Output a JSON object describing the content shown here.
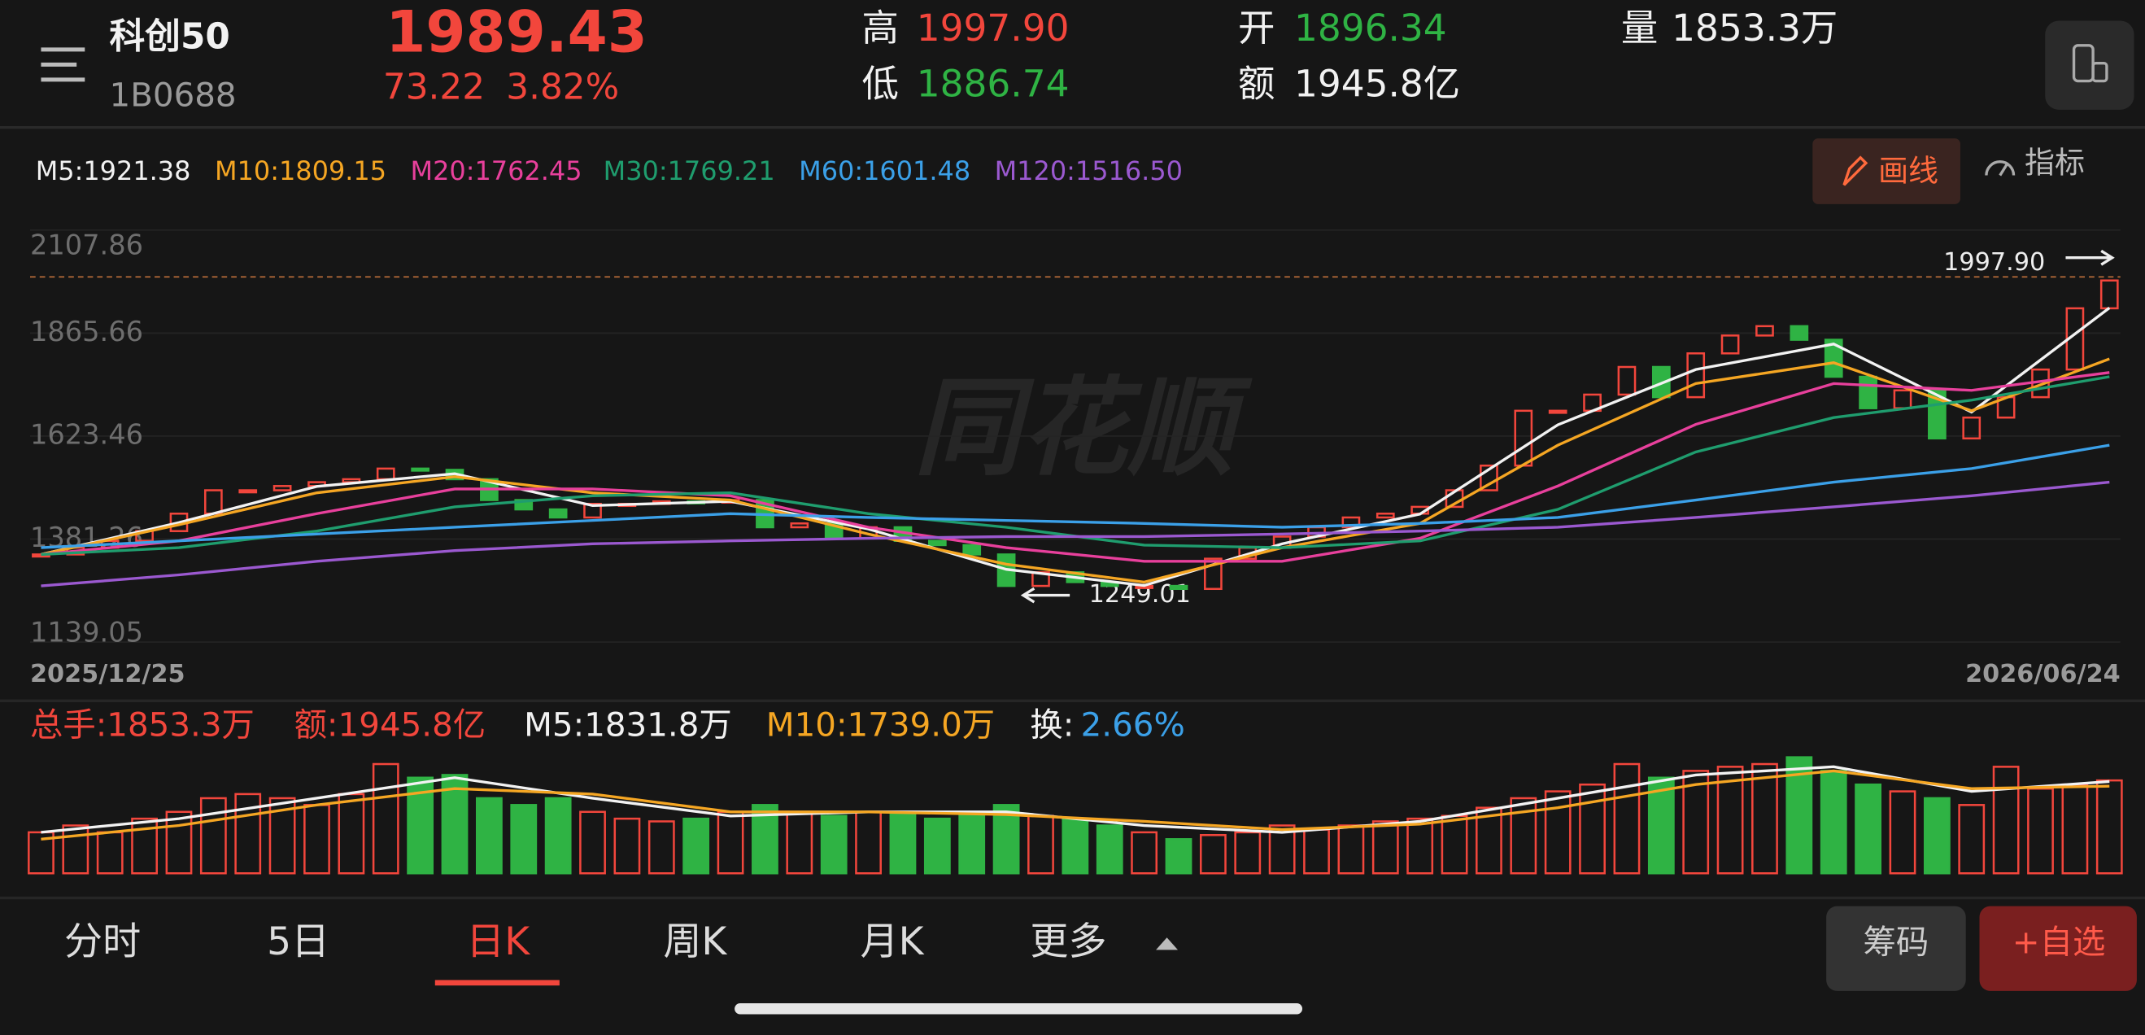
{
  "header": {
    "title": "科创50",
    "code": "1B0688",
    "price": "1989.43",
    "change": "73.22",
    "change_pct": "3.82%",
    "stats": [
      {
        "label": "高",
        "value": "1997.90"
      },
      {
        "label": "低",
        "value": "1886.74"
      },
      {
        "label": "开",
        "value": "1896.34"
      },
      {
        "label": "额",
        "value": "1945.8亿"
      },
      {
        "label": "量",
        "value": "1853.3万"
      }
    ]
  },
  "toolbar": {
    "draw_button": "画线",
    "indicator_button": "指标"
  },
  "watermark": "同花顺",
  "chart_data": [
    {
      "type": "candlestick",
      "closes": [
        1345,
        1361,
        1377,
        1400,
        1441,
        1496,
        1496,
        1506,
        1515,
        1522,
        1547,
        1544,
        1522,
        1473,
        1451,
        1432,
        1464,
        1464,
        1470,
        1467,
        1473,
        1409,
        1418,
        1383,
        1409,
        1377,
        1367,
        1345,
        1271,
        1303,
        1280,
        1271,
        1271,
        1264,
        1335,
        1361,
        1387,
        1409,
        1432,
        1441,
        1457,
        1496,
        1554,
        1683,
        1683,
        1721,
        1786,
        1715,
        1818,
        1860,
        1882,
        1850,
        1763,
        1689,
        1731,
        1618,
        1667,
        1715,
        1780,
        1924,
        1989.43
      ],
      "up_color": "#f2463c",
      "down_color": "#2fb344",
      "ylim": [
        1139.05,
        2107.86
      ],
      "yticks": [
        2107.86,
        1865.66,
        1623.46,
        1381.26,
        1139.05
      ],
      "x_start_label": "2025/12/25",
      "x_end_label": "2026/06/24",
      "high_mark": {
        "value": 1997.9,
        "label": "1997.90"
      },
      "low_mark": 1249.01,
      "series": [
        {
          "name": "M5:1921.38",
          "color": "#f2f2f2",
          "x": [
            0,
            4,
            8,
            12,
            16,
            20,
            24,
            28,
            32,
            36,
            40,
            44,
            48,
            52,
            56,
            60
          ],
          "values": [
            1345,
            1420,
            1505,
            1535,
            1460,
            1470,
            1405,
            1310,
            1272,
            1370,
            1440,
            1650,
            1780,
            1840,
            1680,
            1925
          ]
        },
        {
          "name": "M10:1809.15",
          "color": "#f5a623",
          "x": [
            0,
            4,
            8,
            12,
            16,
            20,
            24,
            28,
            32,
            36,
            40,
            44,
            48,
            52,
            56,
            60
          ],
          "values": [
            1345,
            1415,
            1490,
            1528,
            1490,
            1473,
            1393,
            1322,
            1280,
            1361,
            1418,
            1602,
            1747,
            1796,
            1683,
            1805
          ]
        },
        {
          "name": "M20:1762.45",
          "color": "#e8409c",
          "x": [
            0,
            4,
            8,
            12,
            16,
            20,
            24,
            28,
            32,
            36,
            40,
            44,
            48,
            52,
            56,
            60
          ],
          "values": [
            1345,
            1377,
            1441,
            1499,
            1499,
            1483,
            1409,
            1361,
            1329,
            1329,
            1383,
            1506,
            1651,
            1747,
            1731,
            1773
          ]
        },
        {
          "name": "M30:1769.21",
          "color": "#1f9d6e",
          "x": [
            0,
            4,
            8,
            12,
            16,
            20,
            24,
            28,
            32,
            36,
            40,
            44,
            48,
            52,
            56,
            60
          ],
          "values": [
            1345,
            1361,
            1400,
            1457,
            1483,
            1490,
            1441,
            1409,
            1367,
            1361,
            1377,
            1451,
            1586,
            1667,
            1708,
            1763
          ]
        },
        {
          "name": "M60:1601.48",
          "color": "#3ba0e8",
          "x": [
            0,
            4,
            8,
            12,
            16,
            20,
            24,
            28,
            32,
            36,
            40,
            44,
            48,
            52,
            56,
            60
          ],
          "values": [
            1361,
            1377,
            1393,
            1409,
            1425,
            1441,
            1432,
            1425,
            1418,
            1409,
            1418,
            1432,
            1473,
            1515,
            1547,
            1602
          ]
        },
        {
          "name": "M120:1516.50",
          "color": "#9b59d0",
          "x": [
            0,
            4,
            8,
            12,
            16,
            20,
            24,
            28,
            32,
            36,
            40,
            44,
            48,
            52,
            56,
            60
          ],
          "values": [
            1271,
            1297,
            1329,
            1354,
            1370,
            1377,
            1383,
            1387,
            1387,
            1393,
            1400,
            1409,
            1432,
            1457,
            1483,
            1515
          ]
        }
      ]
    },
    {
      "type": "bar",
      "values": [
        818,
        954,
        818,
        1090,
        1226,
        1499,
        1581,
        1499,
        1363,
        1581,
        2180,
        1908,
        1962,
        1499,
        1363,
        1499,
        1226,
        1090,
        1036,
        1090,
        1226,
        1363,
        1226,
        1145,
        1226,
        1226,
        1090,
        1226,
        1363,
        1145,
        1090,
        954,
        818,
        681,
        763,
        818,
        954,
        872,
        954,
        1036,
        1090,
        1145,
        1308,
        1499,
        1635,
        1771,
        2180,
        1908,
        2044,
        2126,
        2180,
        2316,
        2044,
        1771,
        1635,
        1499,
        1363,
        2126,
        1690,
        1771,
        1853.3
      ],
      "ylim": [
        0,
        2540
      ],
      "legend_extra": [
        "总手:1853.3万",
        "额:1945.8亿",
        "换:",
        "2.66%"
      ],
      "series": [
        {
          "name": "M5:1831.8万",
          "color": "#f2f2f2",
          "x": [
            0,
            4,
            8,
            12,
            16,
            20,
            24,
            28,
            32,
            36,
            40,
            44,
            48,
            52,
            56,
            60
          ],
          "values": [
            818,
            1090,
            1499,
            1908,
            1499,
            1145,
            1226,
            1226,
            954,
            818,
            1036,
            1499,
            1962,
            2126,
            1635,
            1831.8
          ]
        },
        {
          "name": "M10:1739.0万",
          "color": "#f5a623",
          "x": [
            0,
            4,
            8,
            12,
            16,
            20,
            24,
            28,
            32,
            36,
            40,
            44,
            48,
            52,
            56,
            60
          ],
          "values": [
            681,
            954,
            1363,
            1690,
            1581,
            1226,
            1226,
            1172,
            1036,
            872,
            981,
            1308,
            1771,
            2044,
            1690,
            1739
          ]
        }
      ]
    }
  ],
  "tabs": [
    "分时",
    "5日",
    "日K",
    "周K",
    "月K",
    "更多"
  ],
  "buttons": [
    "筹码",
    "+自选"
  ]
}
